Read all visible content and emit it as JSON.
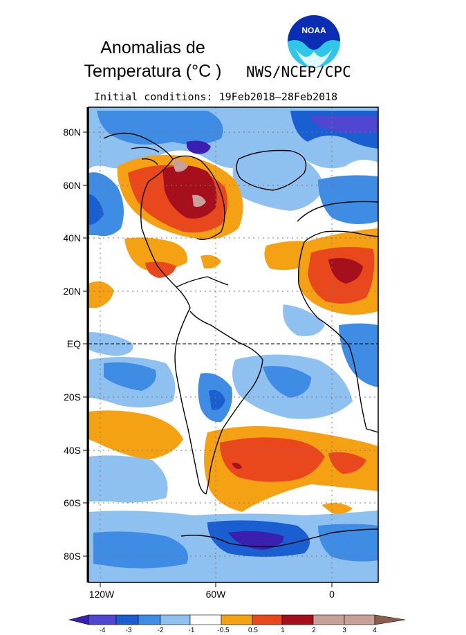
{
  "title_line1": "Anomalias de",
  "title_line2": "Temperatura (°C )",
  "agency": "NWS/NCEP/CPC",
  "logo_text": "NOAA",
  "initial_conditions": "Initial conditions: 19Feb2018–28Feb2018",
  "lat_labels": [
    "80N",
    "60N",
    "40N",
    "20N",
    "EQ",
    "20S",
    "40S",
    "60S",
    "80S"
  ],
  "lon_labels": [
    "120W",
    "60W",
    "0"
  ],
  "colorbar": {
    "labels": [
      "-4",
      "-3",
      "-2",
      "-1",
      "-0.5",
      "0.5",
      "1",
      "2",
      "3",
      "4"
    ],
    "colors": [
      "#3a1fb0",
      "#5046d2",
      "#1a5fd1",
      "#3f8ce5",
      "#8fc1f0",
      "#ffffff",
      "#f4a114",
      "#e8481c",
      "#a6101c",
      "#c8a09a",
      "#8b5e4b"
    ]
  },
  "colors": {
    "neg4": "#3a1fb0",
    "neg3": "#5046d2",
    "neg2": "#1a5fd1",
    "neg1": "#3f8ce5",
    "neg05": "#8fc1f0",
    "pos05": "#f4a114",
    "pos1": "#e8481c",
    "pos2": "#a6101c",
    "pos3": "#c8a09a"
  }
}
